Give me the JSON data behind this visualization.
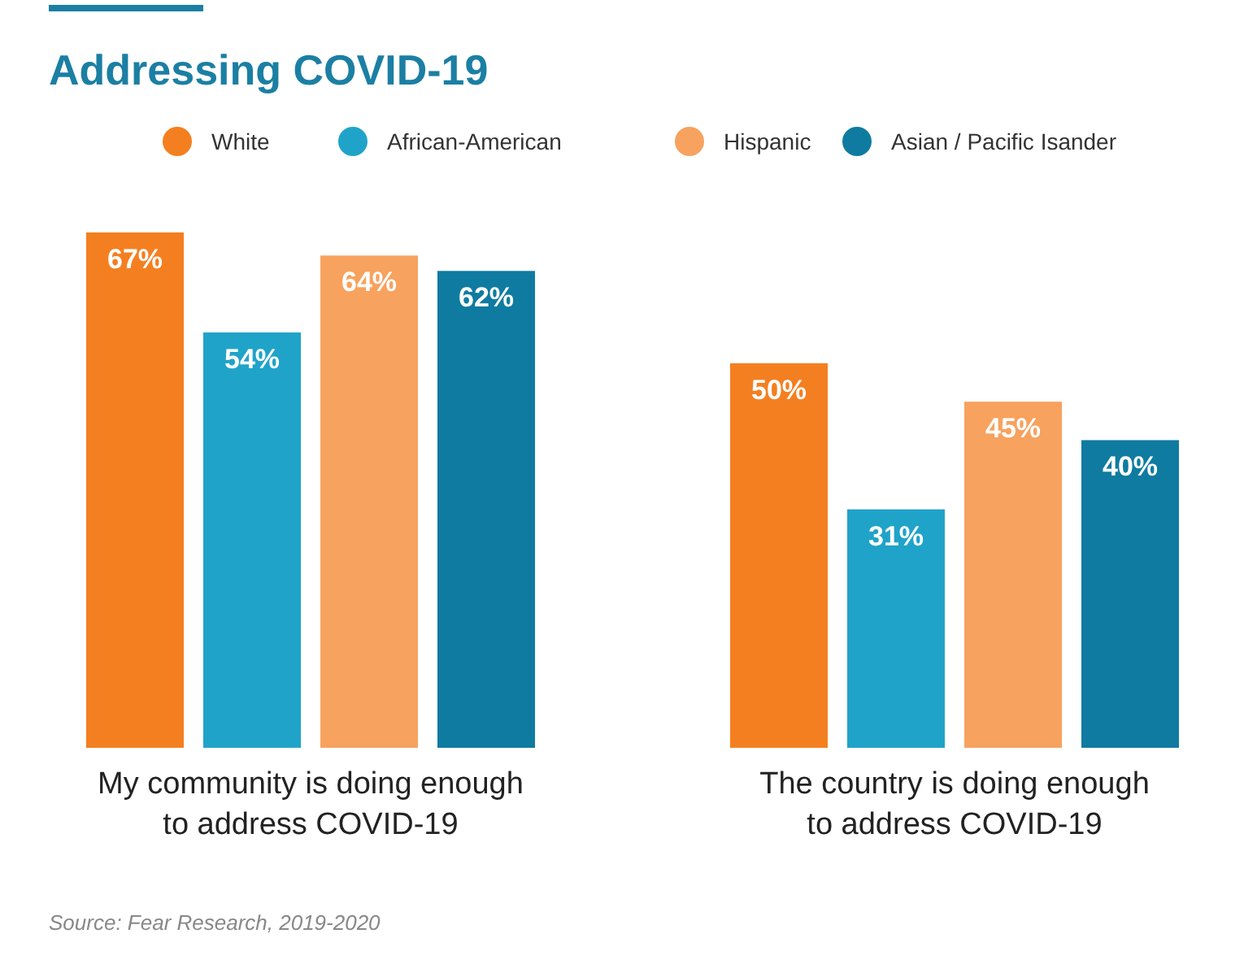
{
  "chart_data": {
    "type": "bar",
    "title": "Addressing COVID-19",
    "categories": [
      "My community is doing enough to address COVID-19",
      "The country is doing enough to address COVID-19"
    ],
    "series": [
      {
        "name": "White",
        "color": "#f47f20",
        "values": [
          67,
          50
        ],
        "value_labels": [
          "67%",
          "50%"
        ]
      },
      {
        "name": "African-American",
        "color": "#20a3c9",
        "values": [
          54,
          31
        ],
        "value_labels": [
          "54%",
          "31%"
        ]
      },
      {
        "name": "Hispanic",
        "color": "#f7a25e",
        "values": [
          64,
          45
        ],
        "value_labels": [
          "64%",
          "45%"
        ]
      },
      {
        "name": "Asian / Pacific Isander",
        "color": "#0f7ba0",
        "values": [
          62,
          40
        ],
        "value_labels": [
          "62%",
          "40%"
        ]
      }
    ],
    "legend": "top",
    "annotations": [
      "Source: Fear Research, 2019-2020"
    ]
  }
}
